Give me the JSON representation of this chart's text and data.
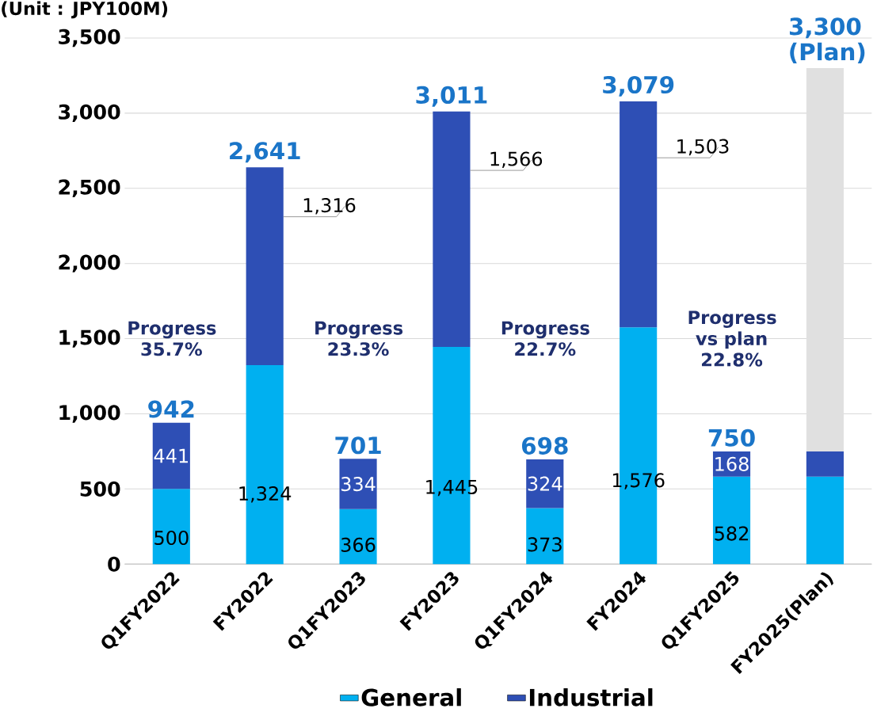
{
  "chart_data": {
    "type": "bar",
    "stacked": true,
    "categories": [
      "Q1FY2022",
      "FY2022",
      "Q1FY2023",
      "FY2023",
      "Q1FY2024",
      "FY2024",
      "Q1FY2025",
      "FY2025(Plan)"
    ],
    "series": [
      {
        "name": "General",
        "color": "#00b0f0",
        "values": [
          500,
          1324,
          366,
          1445,
          373,
          1576,
          582,
          582
        ],
        "value_labels": [
          "500",
          "1,324",
          "366",
          "1,445",
          "373",
          "1,576",
          "582",
          null
        ]
      },
      {
        "name": "Industrial",
        "color": "#2e4fb5",
        "values": [
          441,
          1316,
          334,
          1566,
          324,
          1503,
          168,
          168
        ],
        "value_labels": [
          "441",
          "1,316",
          "334",
          "1,566",
          "324",
          "1,503",
          "168",
          null
        ]
      },
      {
        "color": "#e0e0e0",
        "values": [
          null,
          null,
          null,
          null,
          null,
          null,
          null,
          2550
        ]
      }
    ],
    "totals": [
      "942",
      "2,641",
      "701",
      "3,011",
      "698",
      "3,079",
      "750",
      "3,300 (Plan)"
    ],
    "ylim": [
      0,
      3500
    ],
    "yticks": [
      {
        "value": 0,
        "label": "0"
      },
      {
        "value": 500,
        "label": "500"
      },
      {
        "value": 1000,
        "label": "1,000"
      },
      {
        "value": 1500,
        "label": "1,500"
      },
      {
        "value": 2000,
        "label": "2,000"
      },
      {
        "value": 2500,
        "label": "2,500"
      },
      {
        "value": 3000,
        "label": "3,000"
      },
      {
        "value": 3500,
        "label": "3,500"
      }
    ],
    "grid": "y",
    "legend": "bottom",
    "annotations": [
      "(Unit : JPY100M)",
      "Progress 35.7%",
      "Progress 23.3%",
      "Progress 22.7%",
      "Progress vs plan 22.8%"
    ]
  }
}
